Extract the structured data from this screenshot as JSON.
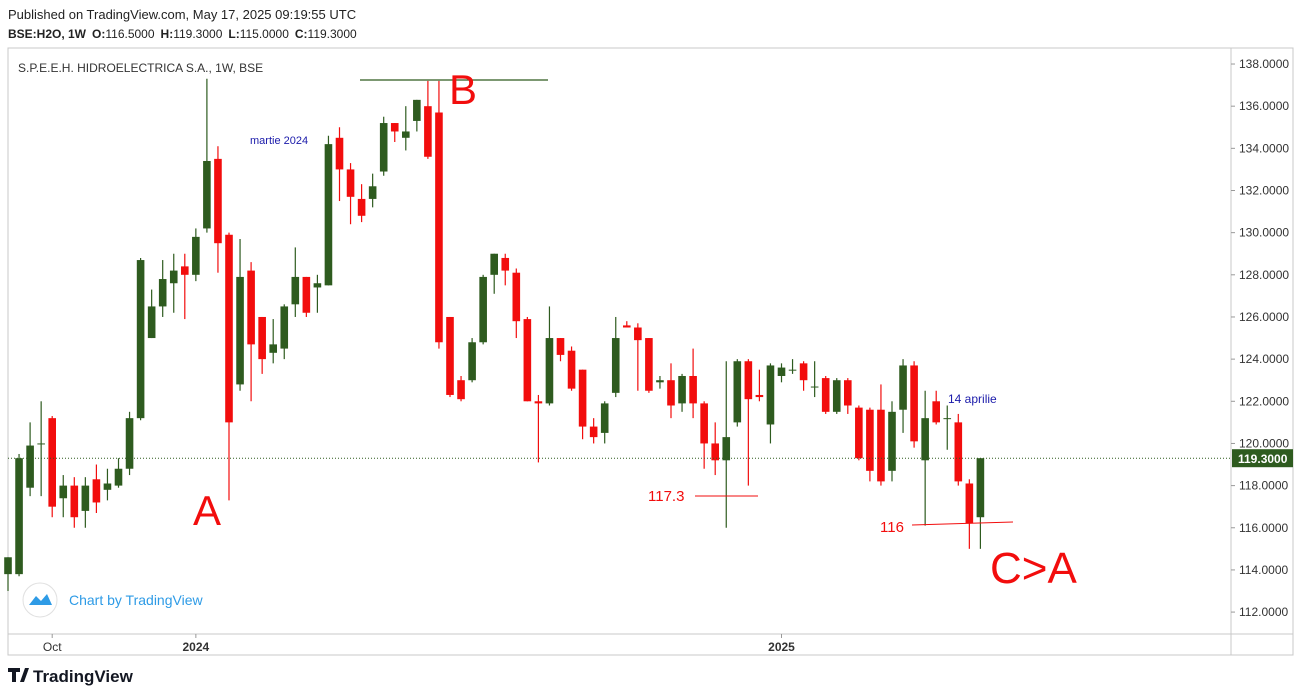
{
  "header": {
    "published": "Published on TradingView.com, May 17, 2025 09:19:55 UTC",
    "symbol": "BSE:H2O, 1W",
    "ohlc": [
      {
        "label": "O:",
        "value": "116.5000"
      },
      {
        "label": "H:",
        "value": "119.3000"
      },
      {
        "label": "L:",
        "value": "115.0000"
      },
      {
        "label": "C:",
        "value": "119.3000"
      }
    ]
  },
  "chart_data": {
    "type": "candlestick",
    "title": "S.P.E.E.H. HIDROELECTRICA S.A., 1W, BSE",
    "up_color": "#2e5b1f",
    "down_color": "#f20d0d",
    "categories": [
      null,
      null,
      null,
      null,
      "Oct",
      null,
      null,
      null,
      null,
      null,
      null,
      null,
      null,
      null,
      null,
      null,
      null,
      "2024",
      null,
      null,
      null,
      null,
      null,
      null,
      null,
      null,
      null,
      null,
      null,
      null,
      null,
      null,
      null,
      null,
      null,
      null,
      null,
      null,
      null,
      null,
      null,
      null,
      null,
      null,
      null,
      null,
      null,
      null,
      null,
      null,
      null,
      null,
      null,
      null,
      null,
      null,
      null,
      null,
      null,
      null,
      null,
      null,
      null,
      null,
      null,
      null,
      null,
      null,
      null,
      null,
      "2025",
      null,
      null,
      null,
      null,
      null,
      null,
      null,
      null,
      null,
      null,
      null,
      null,
      null,
      null,
      null,
      null,
      null,
      null
    ],
    "open": [
      113.8,
      113.8,
      117.9,
      120,
      121.2,
      117.4,
      118,
      116.8,
      118.3,
      117.8,
      118,
      118.8,
      121.2,
      125,
      126.5,
      127.6,
      128.4,
      128,
      130.2,
      133.5,
      129.9,
      122.8,
      128.2,
      126,
      124.3,
      124.5,
      126.6,
      127.9,
      127.4,
      127.5,
      134.5,
      133,
      131.6,
      131.6,
      132.9,
      135.2,
      134.5,
      135.3,
      136,
      135.7,
      126,
      123,
      123,
      124.8,
      128,
      128.8,
      128.1,
      125.9,
      122,
      121.9,
      125,
      124.4,
      123.5,
      120.8,
      120.5,
      122.4,
      125.6,
      125.5,
      125,
      122.9,
      123,
      121.9,
      123.2,
      121.9,
      120,
      119.2,
      121,
      123.9,
      122.3,
      120.9,
      123.2,
      123.5,
      123.8,
      122.7,
      123.1,
      121.5,
      123,
      121.7,
      121.6,
      121.6,
      118.7,
      121.6,
      123.7,
      119.2,
      122,
      121.2,
      121,
      118.1,
      116.5
    ],
    "high": [
      114.6,
      119.5,
      121,
      122,
      121.3,
      118.5,
      118.4,
      118.4,
      119,
      118.8,
      119.3,
      121.5,
      128.8,
      127.3,
      128.7,
      129,
      129,
      130.2,
      137.3,
      134.1,
      130,
      129.7,
      128.6,
      126,
      125.9,
      126.6,
      129.3,
      127.9,
      128,
      134.6,
      135,
      133.3,
      132.3,
      132.8,
      135.5,
      135.2,
      136,
      136.3,
      137.2,
      137.2,
      126,
      123.2,
      125,
      128,
      129,
      129,
      128.3,
      126,
      122.3,
      126.5,
      125,
      124.6,
      123.5,
      121.2,
      122,
      126,
      125.8,
      125.7,
      125,
      123.2,
      123.8,
      123.3,
      124.5,
      122,
      121,
      123.9,
      124,
      124,
      123.5,
      123.8,
      123.8,
      124,
      123.9,
      123.9,
      123.2,
      123.1,
      123.1,
      121.8,
      121.7,
      122.8,
      122,
      124,
      123.9,
      122.5,
      122.5,
      121.8,
      121.4,
      118.3,
      119.3
    ],
    "low": [
      113,
      113.7,
      117.5,
      117.5,
      116.5,
      116.5,
      116,
      116,
      116.7,
      117.3,
      117.9,
      118.5,
      121.1,
      125,
      126,
      126.2,
      125.9,
      127.7,
      130,
      128.1,
      117.3,
      122.5,
      122,
      123.3,
      123.8,
      124,
      126,
      126,
      126.2,
      127.5,
      131.5,
      130.4,
      130.5,
      131.2,
      132.7,
      134.3,
      133.9,
      134.8,
      133.5,
      124.5,
      122.2,
      122,
      122.9,
      124.7,
      127.1,
      127.5,
      125,
      122,
      119.1,
      121.8,
      123.9,
      122.5,
      120.2,
      120,
      120,
      122.2,
      125.5,
      122.5,
      122.4,
      122.6,
      121.2,
      121.5,
      121.2,
      118.8,
      118.5,
      116,
      120.8,
      118,
      122,
      120,
      122.9,
      123.3,
      122.5,
      122.2,
      121.4,
      121.4,
      121.4,
      119.2,
      118.2,
      118,
      118.2,
      120.5,
      119.8,
      116.1,
      120.9,
      119.7,
      118,
      115,
      115
    ],
    "close": [
      114.6,
      119.3,
      119.9,
      120,
      117,
      118,
      116.5,
      118,
      117.2,
      118.1,
      118.8,
      121.2,
      128.7,
      126.5,
      127.8,
      128.2,
      128,
      129.8,
      133.4,
      129.5,
      121,
      127.9,
      124.7,
      124,
      124.7,
      126.5,
      127.9,
      126.2,
      127.6,
      134.2,
      133,
      131.7,
      130.8,
      132.2,
      135.2,
      134.8,
      134.8,
      136.3,
      133.6,
      124.8,
      122.3,
      122.1,
      124.8,
      127.9,
      129,
      128.2,
      125.8,
      122,
      121.9,
      125,
      124.2,
      122.6,
      120.8,
      120.3,
      121.9,
      125,
      125.5,
      124.9,
      122.5,
      123,
      121.8,
      123.2,
      121.9,
      120,
      119.2,
      120.3,
      123.9,
      122.1,
      122.2,
      123.7,
      123.6,
      123.5,
      123,
      122.7,
      121.5,
      123,
      121.8,
      119.3,
      118.7,
      118.2,
      121.5,
      123.7,
      120.1,
      121.2,
      121,
      121.2,
      118.2,
      116.2,
      119.3
    ],
    "ylim": [
      110.96,
      138.76
    ],
    "yticks": [
      {
        "value": 112,
        "label": "112.0000"
      },
      {
        "value": 114,
        "label": "114.0000"
      },
      {
        "value": 116,
        "label": "116.0000"
      },
      {
        "value": 118,
        "label": "118.0000"
      },
      {
        "value": 120,
        "label": "120.0000"
      },
      {
        "value": 122,
        "label": "122.0000"
      },
      {
        "value": 124,
        "label": "124.0000"
      },
      {
        "value": 126,
        "label": "126.0000"
      },
      {
        "value": 128,
        "label": "128.0000"
      },
      {
        "value": 130,
        "label": "130.0000"
      },
      {
        "value": 132,
        "label": "132.0000"
      },
      {
        "value": 134,
        "label": "134.0000"
      },
      {
        "value": 136,
        "label": "136.0000"
      },
      {
        "value": 138,
        "label": "138.0000"
      }
    ],
    "last_price": {
      "value": 119.3,
      "label": "119.3000"
    },
    "annotations": [
      "A",
      "B",
      "C>A",
      "117.3",
      "116",
      "martie 2024",
      "14 aprilie"
    ],
    "watermark": "Chart by TradingView"
  },
  "footer": {
    "logo": "TradingView"
  }
}
